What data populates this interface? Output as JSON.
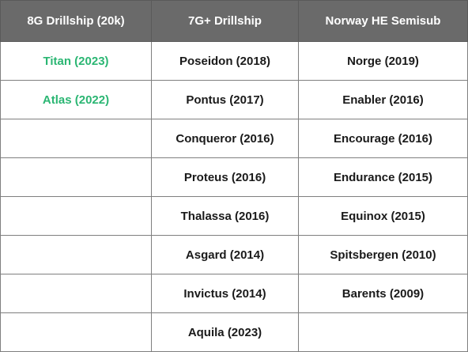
{
  "columns": [
    "8G Drillship (20k)",
    "7G+ Drillship",
    "Norway HE Semisub"
  ],
  "accent_color": "#2bb673",
  "header_color": "#6a6a6a",
  "rows": [
    [
      "Titan (2023)",
      "Poseidon (2018)",
      "Norge (2019)"
    ],
    [
      "Atlas (2022)",
      "Pontus (2017)",
      "Enabler (2016)"
    ],
    [
      "",
      "Conqueror (2016)",
      "Encourage (2016)"
    ],
    [
      "",
      "Proteus (2016)",
      "Endurance (2015)"
    ],
    [
      "",
      "Thalassa (2016)",
      "Equinox (2015)"
    ],
    [
      "",
      "Asgard (2014)",
      "Spitsbergen (2010)"
    ],
    [
      "",
      "Invictus (2014)",
      "Barents (2009)"
    ],
    [
      "",
      "Aquila (2023)",
      ""
    ]
  ]
}
